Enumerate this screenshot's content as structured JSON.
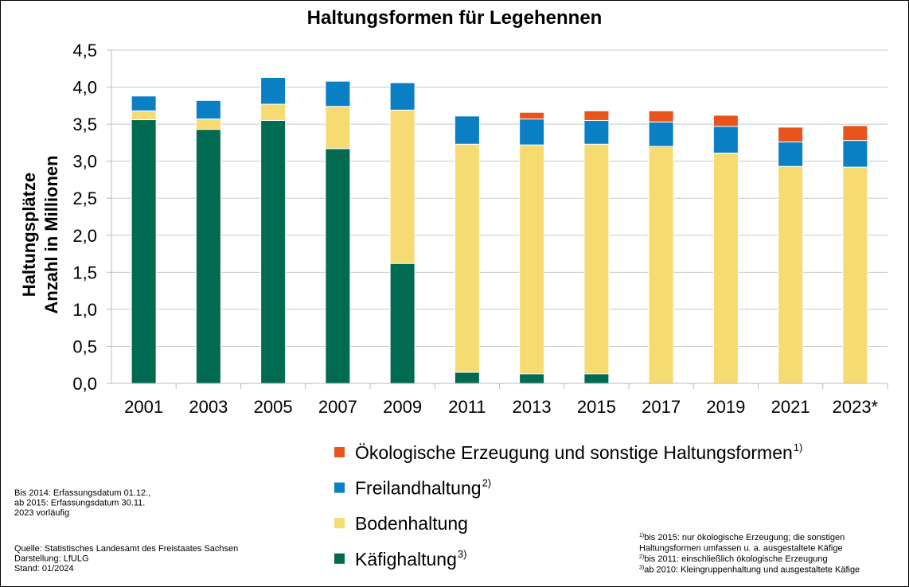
{
  "chart_data": {
    "type": "bar",
    "stacked": true,
    "title": "Haltungsformen für Legehennen",
    "ylabel_line1": "Haltungsplätze",
    "ylabel_line2": "Anzahl in Millionen",
    "ylim": [
      0,
      4.5
    ],
    "yticks": [
      "0,0",
      "0,5",
      "1,0",
      "1,5",
      "2,0",
      "2,5",
      "3,0",
      "3,5",
      "4,0",
      "4,5"
    ],
    "grid": true,
    "legend_position": "bottom",
    "categories": [
      "2001",
      "2003",
      "2005",
      "2007",
      "2009",
      "2011",
      "2013",
      "2015",
      "2017",
      "2019",
      "2021",
      "2023*"
    ],
    "series": [
      {
        "name": "Käfighaltung",
        "sup": "3)",
        "color": "#006b50",
        "values": [
          3.56,
          3.43,
          3.55,
          3.17,
          1.62,
          0.15,
          0.13,
          0.13,
          0,
          0,
          0,
          0
        ]
      },
      {
        "name": "Bodenhaltung",
        "sup": "",
        "color": "#f5db72",
        "values": [
          0.12,
          0.14,
          0.22,
          0.57,
          2.07,
          3.08,
          3.09,
          3.1,
          3.2,
          3.11,
          2.93,
          2.92
        ]
      },
      {
        "name": "Freilandhaltung",
        "sup": "2)",
        "color": "#0a7fc4",
        "values": [
          0.2,
          0.25,
          0.36,
          0.34,
          0.37,
          0.38,
          0.35,
          0.32,
          0.33,
          0.36,
          0.33,
          0.36
        ]
      },
      {
        "name": "Ökologische Erzeugung und sonstige Haltungsformen",
        "sup": "1)",
        "color": "#e8541b",
        "values": [
          0,
          0,
          0,
          0,
          0,
          0,
          0.09,
          0.13,
          0.15,
          0.15,
          0.2,
          0.2
        ]
      }
    ]
  },
  "notes": {
    "erfassung": [
      "Bis 2014: Erfassungsdatum 01.12.,",
      "ab 2015: Erfassungsdatum 30.11.",
      "2023 vorläufig"
    ],
    "quelle": [
      "Quelle: Statistisches Landesamt des Freistaates Sachsen",
      "Darstellung: LfULG",
      "Stand: 01/2024"
    ],
    "footnotes": [
      {
        "sup": "1)",
        "text": " bis 2015: nur ökologische Erzeugung;  die sonstigen"
      },
      {
        "sup": "",
        "text": "Haltungsformen umfassen u. a. ausgestaltete Käfige"
      },
      {
        "sup": "2)",
        "text": " bis 2011: einschließlich ökologische Erzeugung"
      },
      {
        "sup": "3)",
        "text": " ab 2010: Kleingruppenhaltung und ausgestaltete Käfige"
      }
    ]
  }
}
